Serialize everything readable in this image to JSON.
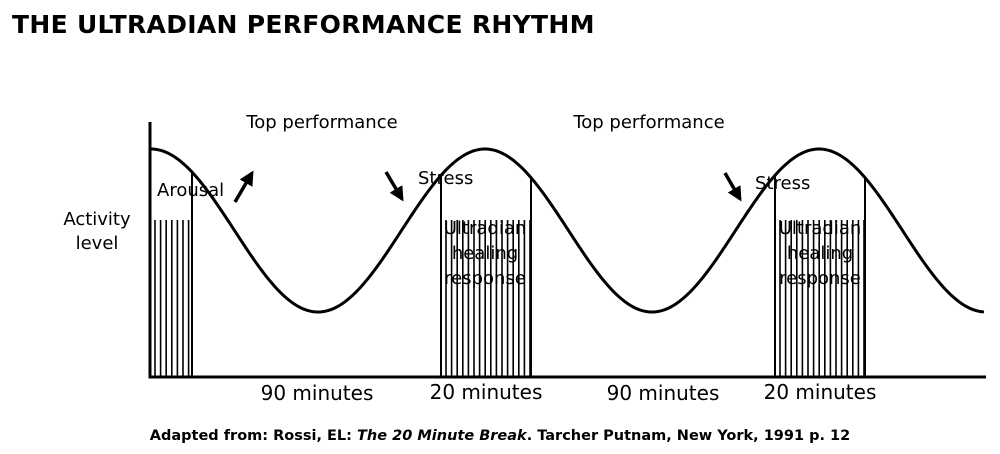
{
  "title": "THE ULTRADIAN PERFORMANCE RHYTHM",
  "y_axis_label": [
    "Activity",
    "level"
  ],
  "labels": {
    "peak_1": "Top performance",
    "peak_2": "Top performance",
    "arousal": "Arousal",
    "stress_1": "Stress",
    "stress_2": "Stress",
    "healing_1": [
      "Ultradian",
      "healing",
      "response"
    ],
    "healing_2": [
      "Ultradian",
      "healing",
      "response"
    ]
  },
  "durations": [
    "90 minutes",
    "20 minutes",
    "90 minutes",
    "20 minutes"
  ],
  "caption": {
    "prefix": "Adapted from: Rossi, EL: ",
    "book": "The 20 Minute Break",
    "suffix": ". Tarcher Putnam, New York, 1991 p. 12"
  }
}
